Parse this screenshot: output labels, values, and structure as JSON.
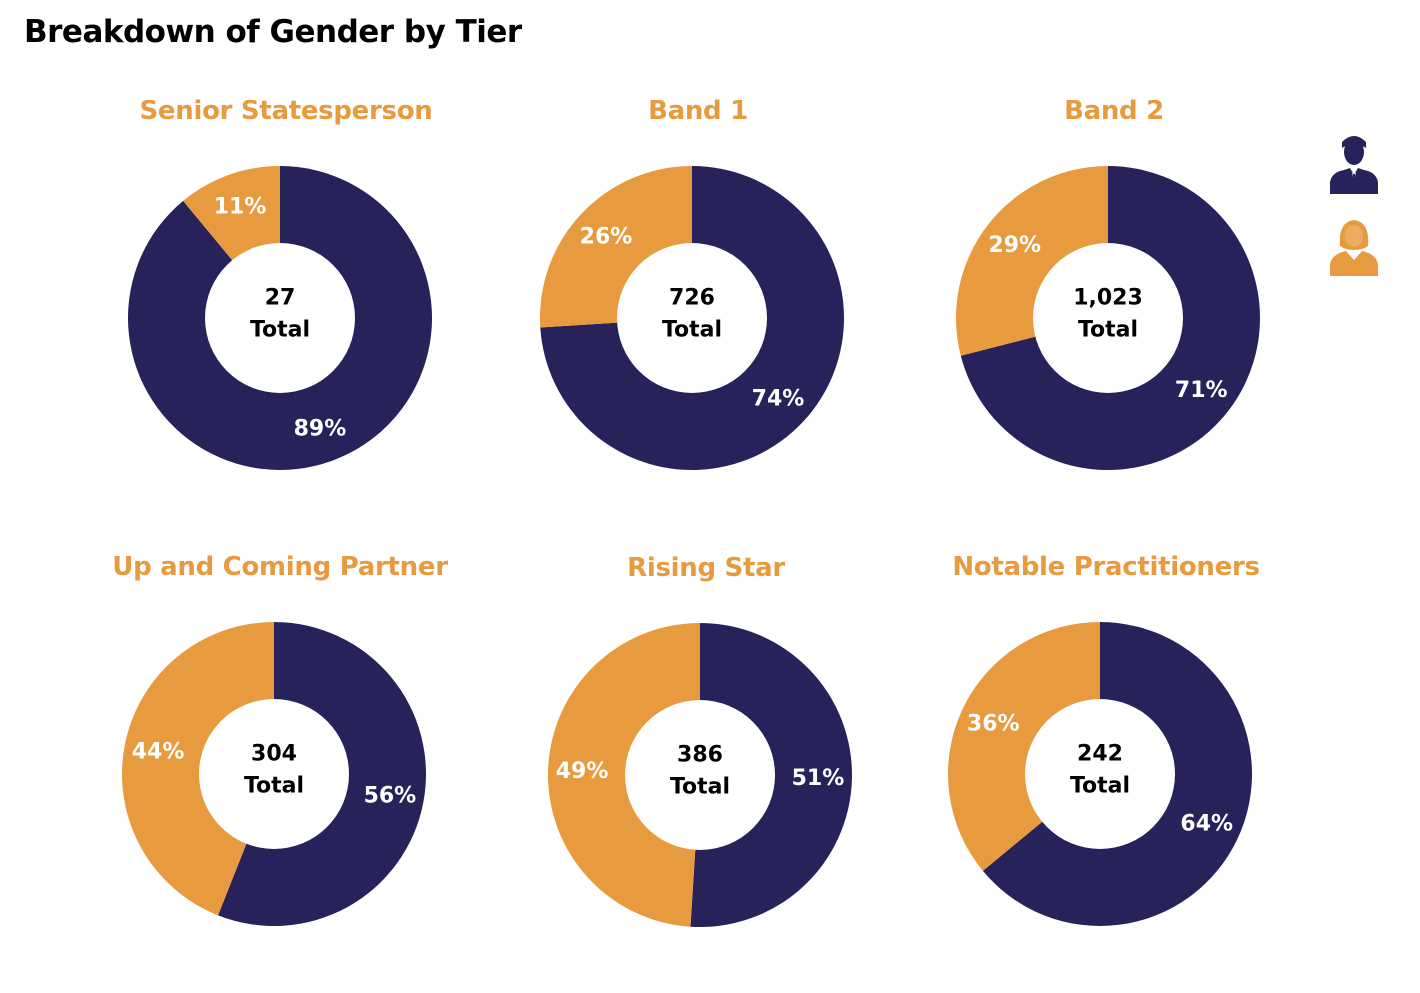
{
  "title": "Breakdown of Gender by Tier",
  "colors": {
    "male": "#27225A",
    "female": "#E89A3F",
    "tier_title": "#E89A3F",
    "center": "#ffffff"
  },
  "legend": [
    {
      "series": "male",
      "icon": "man-icon",
      "color": "#27225A"
    },
    {
      "series": "female",
      "icon": "woman-icon",
      "color": "#E89A3F"
    }
  ],
  "chart_data": [
    {
      "type": "pie",
      "title": "Senior Statesperson",
      "center_value": "27",
      "center_label": "Total",
      "slices": [
        {
          "series": "male",
          "value": 89,
          "label": "89%"
        },
        {
          "series": "female",
          "value": 11,
          "label": "11%"
        }
      ]
    },
    {
      "type": "pie",
      "title": "Band 1",
      "center_value": "726",
      "center_label": "Total",
      "slices": [
        {
          "series": "male",
          "value": 74,
          "label": "74%"
        },
        {
          "series": "female",
          "value": 26,
          "label": "26%"
        }
      ]
    },
    {
      "type": "pie",
      "title": "Band 2",
      "center_value": "1,023",
      "center_label": "Total",
      "slices": [
        {
          "series": "male",
          "value": 71,
          "label": "71%"
        },
        {
          "series": "female",
          "value": 29,
          "label": "29%"
        }
      ]
    },
    {
      "type": "pie",
      "title": "Up and Coming Partner",
      "center_value": "304",
      "center_label": "Total",
      "slices": [
        {
          "series": "male",
          "value": 56,
          "label": "56%"
        },
        {
          "series": "female",
          "value": 44,
          "label": "44%"
        }
      ]
    },
    {
      "type": "pie",
      "title": "Rising Star",
      "center_value": "386",
      "center_label": "Total",
      "slices": [
        {
          "series": "male",
          "value": 51,
          "label": "51%"
        },
        {
          "series": "female",
          "value": 49,
          "label": "49%"
        }
      ]
    },
    {
      "type": "pie",
      "title": "Notable Practitioners",
      "center_value": "242",
      "center_label": "Total",
      "slices": [
        {
          "series": "male",
          "value": 64,
          "label": "64%"
        },
        {
          "series": "female",
          "value": 36,
          "label": "36%"
        }
      ]
    }
  ]
}
